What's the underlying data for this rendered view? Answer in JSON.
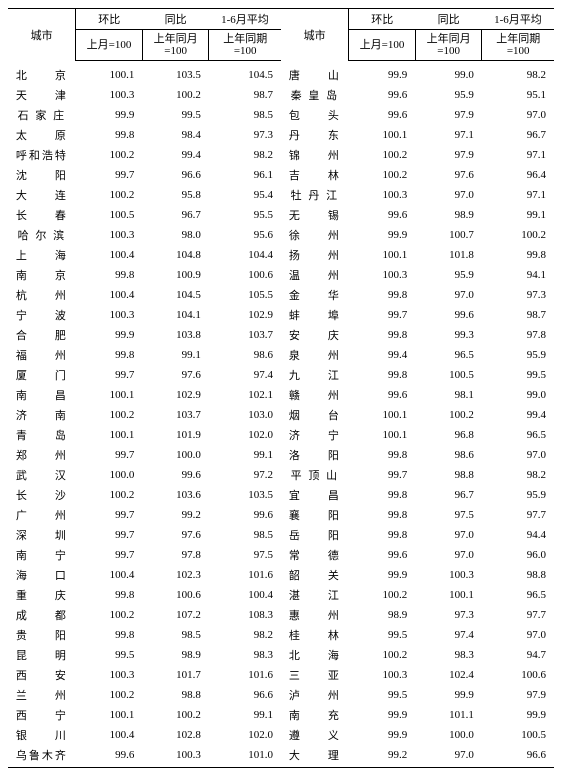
{
  "headers": {
    "city": "城市",
    "g1": "环比",
    "g2": "同比",
    "g3": "1-6月平均",
    "sub1": "上月=100",
    "sub2": "上年同月<br>=100",
    "sub3": "上年同期<br>=100"
  },
  "left": [
    {
      "c": "北　　京",
      "v": [
        100.1,
        103.5,
        104.5
      ]
    },
    {
      "c": "天　　津",
      "v": [
        100.3,
        100.2,
        98.7
      ]
    },
    {
      "c": "石 家 庄",
      "v": [
        99.9,
        99.5,
        98.5
      ]
    },
    {
      "c": "太　　原",
      "v": [
        99.8,
        98.4,
        97.3
      ]
    },
    {
      "c": "呼和浩特",
      "v": [
        100.2,
        99.4,
        98.2
      ]
    },
    {
      "c": "沈　　阳",
      "v": [
        99.7,
        96.6,
        96.1
      ]
    },
    {
      "c": "大　　连",
      "v": [
        100.2,
        95.8,
        95.4
      ]
    },
    {
      "c": "长　　春",
      "v": [
        100.5,
        96.7,
        95.5
      ]
    },
    {
      "c": "哈 尔 滨",
      "v": [
        100.3,
        98.0,
        95.6
      ]
    },
    {
      "c": "上　　海",
      "v": [
        100.4,
        104.8,
        104.4
      ]
    },
    {
      "c": "南　　京",
      "v": [
        99.8,
        100.9,
        100.6
      ]
    },
    {
      "c": "杭　　州",
      "v": [
        100.4,
        104.5,
        105.5
      ]
    },
    {
      "c": "宁　　波",
      "v": [
        100.3,
        104.1,
        102.9
      ]
    },
    {
      "c": "合　　肥",
      "v": [
        99.9,
        103.8,
        103.7
      ]
    },
    {
      "c": "福　　州",
      "v": [
        99.8,
        99.1,
        98.6
      ]
    },
    {
      "c": "厦　　门",
      "v": [
        99.7,
        97.6,
        97.4
      ]
    },
    {
      "c": "南　　昌",
      "v": [
        100.1,
        102.9,
        102.1
      ]
    },
    {
      "c": "济　　南",
      "v": [
        100.2,
        103.7,
        103.0
      ]
    },
    {
      "c": "青　　岛",
      "v": [
        100.1,
        101.9,
        102.0
      ]
    },
    {
      "c": "郑　　州",
      "v": [
        99.7,
        100.0,
        99.1
      ]
    },
    {
      "c": "武　　汉",
      "v": [
        100.0,
        99.6,
        97.2
      ]
    },
    {
      "c": "长　　沙",
      "v": [
        100.2,
        103.6,
        103.5
      ]
    },
    {
      "c": "广　　州",
      "v": [
        99.7,
        99.2,
        99.6
      ]
    },
    {
      "c": "深　　圳",
      "v": [
        99.7,
        97.6,
        98.5
      ]
    },
    {
      "c": "南　　宁",
      "v": [
        99.7,
        97.8,
        97.5
      ]
    },
    {
      "c": "海　　口",
      "v": [
        100.4,
        102.3,
        101.6
      ]
    },
    {
      "c": "重　　庆",
      "v": [
        99.8,
        100.6,
        100.4
      ]
    },
    {
      "c": "成　　都",
      "v": [
        100.2,
        107.2,
        108.3
      ]
    },
    {
      "c": "贵　　阳",
      "v": [
        99.8,
        98.5,
        98.2
      ]
    },
    {
      "c": "昆　　明",
      "v": [
        99.5,
        98.9,
        98.3
      ]
    },
    {
      "c": "西　　安",
      "v": [
        100.3,
        101.7,
        101.6
      ]
    },
    {
      "c": "兰　　州",
      "v": [
        100.2,
        98.8,
        96.6
      ]
    },
    {
      "c": "西　　宁",
      "v": [
        100.1,
        100.2,
        99.1
      ]
    },
    {
      "c": "银　　川",
      "v": [
        100.4,
        102.8,
        102.0
      ]
    },
    {
      "c": "乌鲁木齐",
      "v": [
        99.6,
        100.3,
        101.0
      ]
    }
  ],
  "right": [
    {
      "c": "唐　　山",
      "v": [
        99.9,
        99.0,
        98.2
      ]
    },
    {
      "c": "秦 皇 岛",
      "v": [
        99.6,
        95.9,
        95.1
      ]
    },
    {
      "c": "包　　头",
      "v": [
        99.6,
        97.9,
        97.0
      ]
    },
    {
      "c": "丹　　东",
      "v": [
        100.1,
        97.1,
        96.7
      ]
    },
    {
      "c": "锦　　州",
      "v": [
        100.2,
        97.9,
        97.1
      ]
    },
    {
      "c": "吉　　林",
      "v": [
        100.2,
        97.6,
        96.4
      ]
    },
    {
      "c": "牡 丹 江",
      "v": [
        100.3,
        97.0,
        97.1
      ]
    },
    {
      "c": "无　　锡",
      "v": [
        99.6,
        98.9,
        99.1
      ]
    },
    {
      "c": "徐　　州",
      "v": [
        99.9,
        100.7,
        100.2
      ]
    },
    {
      "c": "扬　　州",
      "v": [
        100.1,
        101.8,
        99.8
      ]
    },
    {
      "c": "温　　州",
      "v": [
        100.3,
        95.9,
        94.1
      ]
    },
    {
      "c": "金　　华",
      "v": [
        99.8,
        97.0,
        97.3
      ]
    },
    {
      "c": "蚌　　埠",
      "v": [
        99.7,
        99.6,
        98.7
      ]
    },
    {
      "c": "安　　庆",
      "v": [
        99.8,
        99.3,
        97.8
      ]
    },
    {
      "c": "泉　　州",
      "v": [
        99.4,
        96.5,
        95.9
      ]
    },
    {
      "c": "九　　江",
      "v": [
        99.8,
        100.5,
        99.5
      ]
    },
    {
      "c": "赣　　州",
      "v": [
        99.6,
        98.1,
        99.0
      ]
    },
    {
      "c": "烟　　台",
      "v": [
        100.1,
        100.2,
        99.4
      ]
    },
    {
      "c": "济　　宁",
      "v": [
        100.1,
        96.8,
        96.5
      ]
    },
    {
      "c": "洛　　阳",
      "v": [
        99.8,
        98.6,
        97.0
      ]
    },
    {
      "c": "平 顶 山",
      "v": [
        99.7,
        98.8,
        98.2
      ]
    },
    {
      "c": "宜　　昌",
      "v": [
        99.8,
        96.7,
        95.9
      ]
    },
    {
      "c": "襄　　阳",
      "v": [
        99.8,
        97.5,
        97.7
      ]
    },
    {
      "c": "岳　　阳",
      "v": [
        99.8,
        97.0,
        94.4
      ]
    },
    {
      "c": "常　　德",
      "v": [
        99.6,
        97.0,
        96.0
      ]
    },
    {
      "c": "韶　　关",
      "v": [
        99.9,
        100.3,
        98.8
      ]
    },
    {
      "c": "湛　　江",
      "v": [
        100.2,
        100.1,
        96.5
      ]
    },
    {
      "c": "惠　　州",
      "v": [
        98.9,
        97.3,
        97.7
      ]
    },
    {
      "c": "桂　　林",
      "v": [
        99.5,
        97.4,
        97.0
      ]
    },
    {
      "c": "北　　海",
      "v": [
        100.2,
        98.3,
        94.7
      ]
    },
    {
      "c": "三　　亚",
      "v": [
        100.3,
        102.4,
        100.6
      ]
    },
    {
      "c": "泸　　州",
      "v": [
        99.5,
        99.9,
        97.9
      ]
    },
    {
      "c": "南　　充",
      "v": [
        99.9,
        101.1,
        99.9
      ]
    },
    {
      "c": "遵　　义",
      "v": [
        99.9,
        100.0,
        100.5
      ]
    },
    {
      "c": "大　　理",
      "v": [
        99.2,
        97.0,
        96.6
      ]
    }
  ]
}
